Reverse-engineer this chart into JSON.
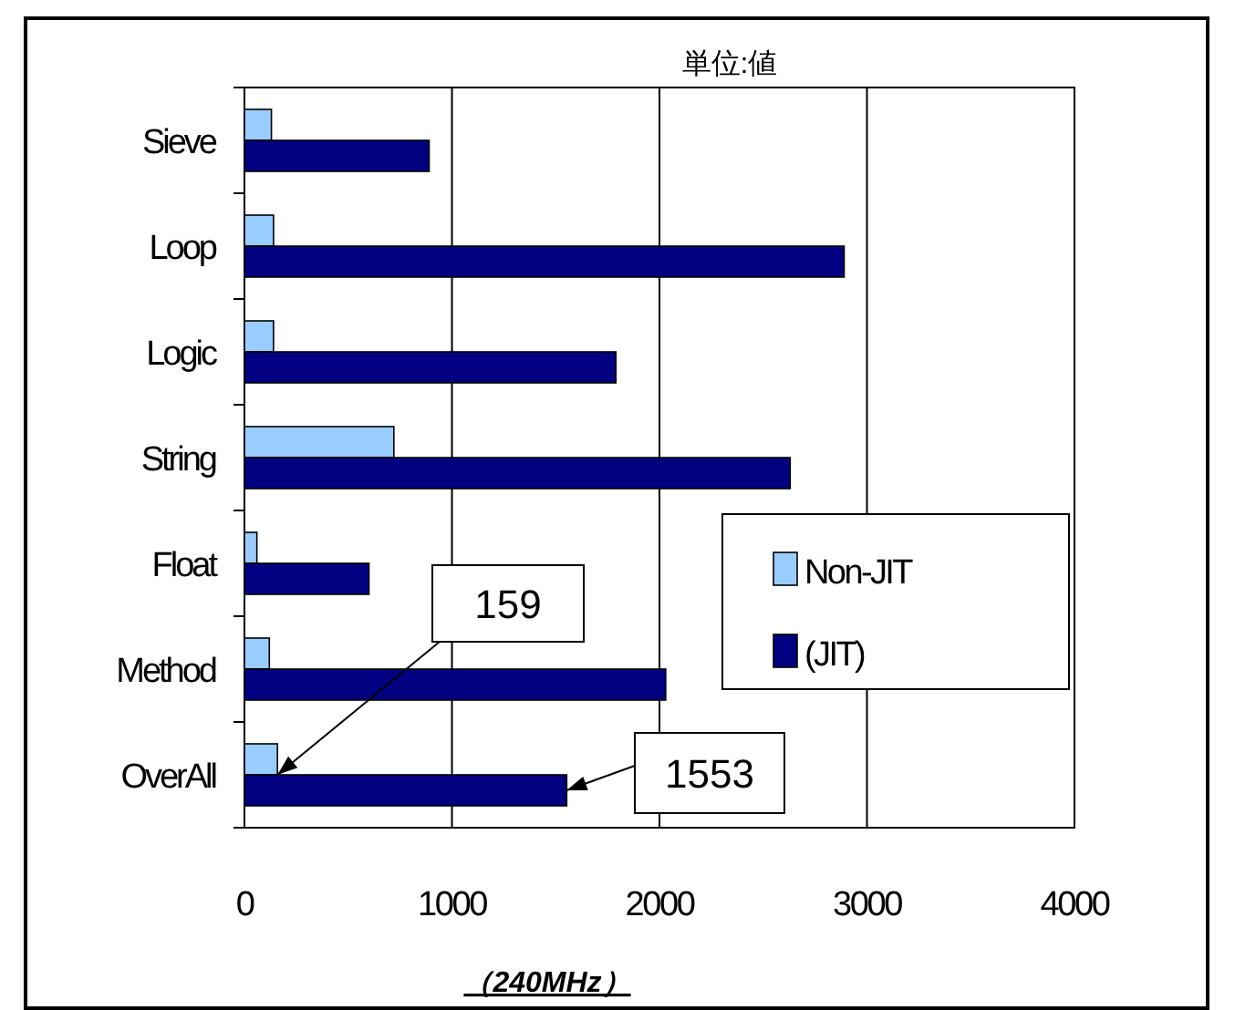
{
  "chart_data": {
    "type": "bar",
    "orientation": "horizontal",
    "title": "単位:値",
    "xlabel": "（240MHz）",
    "categories": [
      "Sieve",
      "Loop",
      "Logic",
      "String",
      "Float",
      "Method",
      "OverAll"
    ],
    "series": [
      {
        "name": "Non-JIT",
        "color": "#99ccff",
        "values": [
          130,
          140,
          140,
          720,
          60,
          120,
          159
        ]
      },
      {
        "name": "(JIT)",
        "color": "#000080",
        "values": [
          890,
          2890,
          1790,
          2630,
          600,
          2030,
          1553
        ]
      }
    ],
    "xlim": [
      0,
      4000
    ],
    "xticks": [
      0,
      1000,
      2000,
      3000,
      4000
    ],
    "grid": "x",
    "legend": "right",
    "annotations": [
      {
        "text": "159",
        "x": 159,
        "y": "OverAll"
      },
      {
        "text": "1553",
        "x": 1553,
        "y": "OverAll"
      }
    ]
  }
}
